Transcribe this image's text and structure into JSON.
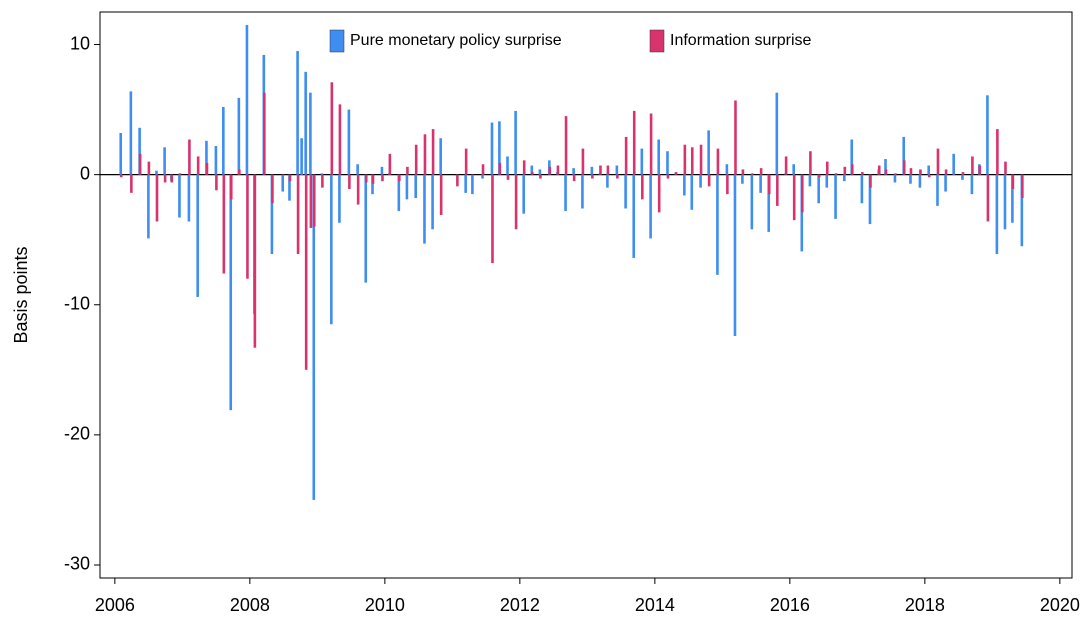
{
  "chart_data": {
    "type": "bar",
    "y_label": "Basis points",
    "x": [
      2006.09,
      2006.24,
      2006.37,
      2006.5,
      2006.62,
      2006.74,
      2006.84,
      2006.96,
      2007.1,
      2007.23,
      2007.36,
      2007.5,
      2007.61,
      2007.72,
      2007.84,
      2007.96,
      2008.07,
      2008.21,
      2008.33,
      2008.49,
      2008.59,
      2008.71,
      2008.77,
      2008.83,
      2008.9,
      2008.95,
      2009.07,
      2009.21,
      2009.33,
      2009.47,
      2009.6,
      2009.72,
      2009.82,
      2009.96,
      2010.07,
      2010.21,
      2010.33,
      2010.46,
      2010.59,
      2010.71,
      2010.83,
      2011.07,
      2011.2,
      2011.3,
      2011.45,
      2011.59,
      2011.7,
      2011.82,
      2011.94,
      2012.06,
      2012.18,
      2012.3,
      2012.44,
      2012.56,
      2012.68,
      2012.8,
      2012.93,
      2013.07,
      2013.19,
      2013.3,
      2013.44,
      2013.57,
      2013.69,
      2013.81,
      2013.94,
      2014.06,
      2014.19,
      2014.31,
      2014.44,
      2014.55,
      2014.68,
      2014.8,
      2014.93,
      2015.07,
      2015.19,
      2015.3,
      2015.44,
      2015.57,
      2015.69,
      2015.81,
      2015.94,
      2016.06,
      2016.18,
      2016.3,
      2016.43,
      2016.55,
      2016.68,
      2016.81,
      2016.92,
      2017.07,
      2017.19,
      2017.32,
      2017.42,
      2017.56,
      2017.69,
      2017.79,
      2017.93,
      2018.06,
      2018.19,
      2018.31,
      2018.43,
      2018.56,
      2018.7,
      2018.81,
      2018.93,
      2019.07,
      2019.19,
      2019.3,
      2019.44
    ],
    "series": [
      {
        "name": "Pure monetary policy surprise",
        "color": "#3d8ef0",
        "values": [
          3.2,
          6.4,
          3.6,
          -4.9,
          0.3,
          2.1,
          -0.5,
          -3.3,
          -3.6,
          -9.4,
          2.6,
          2.2,
          5.2,
          -18.1,
          5.9,
          11.5,
          -10.7,
          9.2,
          -6.1,
          -1.3,
          -2.0,
          9.5,
          2.8,
          7.9,
          6.3,
          -25.0,
          0.1,
          -11.5,
          -3.7,
          5.0,
          0.8,
          -8.3,
          -1.5,
          0.6,
          0.1,
          -2.8,
          -1.9,
          -1.8,
          -5.3,
          -4.2,
          2.8,
          -0.1,
          -1.4,
          -1.5,
          -0.3,
          4.0,
          4.1,
          1.4,
          4.9,
          -3.0,
          0.7,
          0.4,
          1.1,
          0.2,
          -2.8,
          0.5,
          -2.6,
          0.6,
          0.1,
          -1.0,
          0.7,
          -2.6,
          -6.4,
          2.0,
          -4.9,
          2.7,
          1.8,
          0.1,
          -1.6,
          -2.7,
          -1.0,
          3.4,
          -7.7,
          0.8,
          -12.4,
          -0.7,
          -4.2,
          -1.4,
          -4.4,
          6.3,
          0.1,
          0.8,
          -5.9,
          -0.9,
          -2.2,
          -1.0,
          -3.4,
          -0.5,
          2.7,
          -2.2,
          -3.8,
          0.4,
          1.2,
          -0.6,
          2.9,
          -0.7,
          -1.0,
          0.7,
          -2.4,
          -1.3,
          1.6,
          -0.4,
          -1.5,
          0.8,
          6.1,
          -6.1,
          -4.2,
          -3.7,
          -5.5
        ]
      },
      {
        "name": "Information surprise",
        "color": "#d9336e",
        "values": [
          -0.2,
          -1.4,
          1.6,
          1.0,
          -3.6,
          -0.6,
          -0.6,
          0.1,
          2.7,
          1.4,
          0.9,
          -1.2,
          -7.6,
          -1.9,
          0.4,
          -8.0,
          -13.3,
          6.3,
          -2.2,
          0.0,
          -0.5,
          -6.1,
          0.0,
          -15.0,
          -4.1,
          -4.0,
          -1.0,
          7.1,
          5.4,
          -1.1,
          -2.3,
          -0.6,
          -0.7,
          -0.5,
          1.6,
          -0.5,
          0.6,
          2.3,
          3.1,
          3.5,
          -3.1,
          -0.9,
          2.0,
          0.0,
          0.8,
          -6.8,
          0.9,
          -0.4,
          -4.2,
          1.1,
          0.2,
          -0.3,
          0.6,
          0.7,
          4.5,
          -0.5,
          2.0,
          -0.3,
          0.7,
          0.7,
          -0.3,
          2.9,
          4.9,
          -1.9,
          4.7,
          -2.9,
          -0.3,
          0.2,
          2.3,
          2.1,
          2.3,
          -0.9,
          2.0,
          -1.5,
          5.7,
          0.4,
          0.1,
          0.5,
          -1.5,
          -2.4,
          1.4,
          -3.5,
          -2.9,
          1.8,
          -0.2,
          1.0,
          0.1,
          0.6,
          0.8,
          0.2,
          -1.0,
          0.7,
          0.4,
          0.1,
          1.1,
          0.5,
          0.4,
          -0.2,
          2.0,
          0.4,
          0.0,
          0.2,
          1.4,
          0.7,
          -3.6,
          3.5,
          1.0,
          -1.1,
          -1.8
        ]
      }
    ],
    "xlim": [
      2005.78,
      2020.18
    ],
    "xticks": [
      2006,
      2008,
      2010,
      2012,
      2014,
      2016,
      2018,
      2020
    ],
    "ylim": [
      -31,
      12.5
    ],
    "yticks": [
      10,
      0,
      -10,
      -20,
      -30
    ],
    "grid": false,
    "legend": "top"
  }
}
